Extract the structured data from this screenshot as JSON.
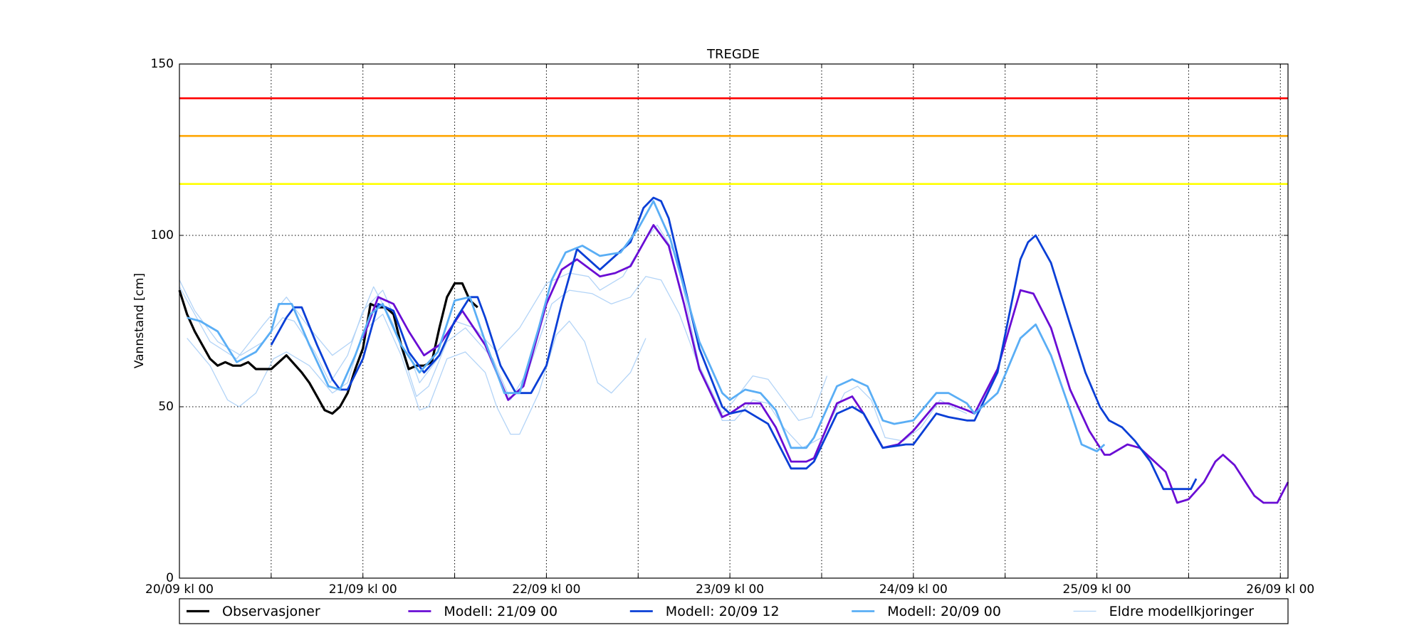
{
  "chart_data": {
    "type": "line",
    "title": "TREGDE",
    "y_label": "Vannstand [cm]",
    "xlim": [
      0,
      145
    ],
    "ylim": [
      0,
      150
    ],
    "xticks": [
      {
        "value": 0,
        "label": "20/09 kl 00"
      },
      {
        "value": 24,
        "label": "21/09 kl 00"
      },
      {
        "value": 48,
        "label": "22/09 kl 00"
      },
      {
        "value": 72,
        "label": "23/09 kl 00"
      },
      {
        "value": 96,
        "label": "24/09 kl 00"
      },
      {
        "value": 120,
        "label": "25/09 kl 00"
      },
      {
        "value": 144,
        "label": "26/09 kl 00"
      }
    ],
    "xminorticks": [
      12,
      36,
      60,
      84,
      108,
      132
    ],
    "yticks": [
      0,
      50,
      100,
      150
    ],
    "grid": true,
    "hlines": [
      {
        "value": 140,
        "color": "#ff0000"
      },
      {
        "value": 129,
        "color": "#ffa500"
      },
      {
        "value": 115,
        "color": "#ffff00"
      }
    ],
    "series": [
      {
        "name": "Observasjoner",
        "color": "#000000",
        "width": 3.2,
        "x": [
          0,
          1,
          2,
          4,
          5,
          6,
          7,
          8,
          9,
          10,
          12,
          14,
          16,
          17,
          18,
          19,
          20,
          21,
          22,
          23,
          24,
          25,
          26,
          27,
          28,
          29,
          30,
          31,
          32,
          33,
          34,
          35,
          36,
          37,
          38,
          39
        ],
        "values": [
          84,
          77,
          72,
          64,
          62,
          63,
          62,
          62,
          63,
          61,
          61,
          65,
          60,
          57,
          53,
          49,
          48,
          50,
          54,
          61,
          67,
          80,
          79,
          79,
          77,
          68,
          61,
          62,
          62,
          63,
          73,
          82,
          86,
          86,
          81,
          79
        ]
      },
      {
        "name": "Modell: 21/09 00",
        "color": "#6a0dd4",
        "width": 2.8,
        "x": [
          24,
          26,
          28,
          30,
          32,
          34,
          37,
          40,
          43,
          45,
          48,
          50,
          52,
          55,
          57,
          59,
          62,
          64,
          66,
          68,
          71,
          72,
          74,
          76,
          78,
          80,
          82,
          83,
          86,
          88,
          89.5,
          92,
          94,
          96,
          99,
          100.6,
          103,
          104,
          107,
          110,
          111.7,
          114,
          116.5,
          119,
          121,
          121.7,
          124,
          125.6,
          129,
          130.5,
          132,
          134,
          135.5,
          136.5,
          138,
          140.6,
          141.8,
          143.6,
          145
        ],
        "values": [
          70,
          82,
          80,
          72,
          65,
          68,
          78,
          68,
          52,
          56,
          80,
          90,
          93,
          88,
          89,
          91,
          103,
          97,
          80,
          61,
          47,
          48,
          51,
          51,
          44,
          34,
          34,
          35,
          51,
          53,
          48,
          38,
          39,
          43,
          51,
          51,
          49,
          48,
          61,
          84,
          83,
          73,
          55,
          43,
          36,
          36,
          39,
          38,
          31,
          22,
          23,
          28,
          34,
          36,
          33,
          24,
          22,
          22,
          28
        ]
      },
      {
        "name": "Modell: 20/09 12",
        "color": "#0a3fd6",
        "width": 2.8,
        "x": [
          12,
          14,
          15,
          16,
          18,
          20,
          21,
          22,
          24,
          26,
          28,
          30,
          32,
          34,
          36,
          38,
          39,
          40,
          42,
          44,
          46,
          48,
          50,
          52,
          55,
          59,
          60.7,
          62,
          63,
          64,
          68,
          71,
          72,
          74,
          77,
          80,
          82,
          83,
          86,
          88,
          89.5,
          92,
          95,
          96,
          99,
          100.6,
          103,
          104,
          107,
          110,
          111,
          112,
          114,
          116.5,
          118.5,
          120.4,
          121.6,
          123.3,
          125,
          127,
          128.7,
          130.5,
          132.3,
          133
        ],
        "values": [
          68,
          76,
          79,
          79,
          68,
          58,
          55,
          55,
          64,
          80,
          78,
          66,
          60,
          65,
          75,
          82,
          82,
          76,
          62,
          54,
          54,
          62,
          80,
          96,
          90,
          98,
          108,
          111,
          110,
          105,
          67,
          50,
          48,
          49,
          45,
          32,
          32,
          34,
          48,
          50,
          48,
          38,
          39,
          39,
          48,
          47,
          46,
          46,
          60,
          93,
          98,
          100,
          92,
          74,
          60,
          50,
          46,
          44,
          40,
          34,
          26,
          26,
          26,
          29
        ]
      },
      {
        "name": "Modell: 20/09 00",
        "color": "#5aaef5",
        "width": 2.8,
        "x": [
          1,
          2.7,
          5,
          7.5,
          10,
          12,
          13,
          14.7,
          17,
          19.5,
          21,
          23,
          25,
          26.6,
          29,
          31.4,
          33.8,
          36,
          38,
          40,
          42.5,
          44.5,
          47,
          48.7,
          50.5,
          52.7,
          55,
          57.7,
          60,
          62,
          64.2,
          68,
          71,
          72,
          74,
          76,
          78,
          80,
          82,
          83,
          86,
          88,
          90,
          92,
          93.5,
          96,
          99,
          100.6,
          103,
          104,
          107,
          110,
          112,
          114,
          116.5,
          118,
          120,
          121
        ],
        "values": [
          76,
          75,
          72,
          63,
          66,
          72,
          80,
          80,
          68,
          56,
          55,
          65,
          77,
          80,
          68,
          60,
          66,
          81,
          82,
          69,
          54,
          54,
          73,
          87,
          95,
          97,
          94,
          95,
          102,
          110,
          99,
          69,
          54,
          52,
          55,
          54,
          49,
          38,
          38,
          41,
          56,
          58,
          56,
          46,
          45,
          46,
          54,
          54,
          51,
          48,
          54,
          70,
          74,
          65,
          49,
          39,
          37,
          39
        ]
      },
      {
        "name": "Eldre modellkjoringer",
        "color": "#b3d4f7",
        "width": 1.3,
        "runs": [
          {
            "x": [
              1,
              4,
              6.3,
              7.8,
              10,
              12.3,
              14,
              17,
              20,
              22,
              24,
              26.6,
              29,
              31.4,
              32.6,
              35,
              37.4,
              40,
              41.5,
              43.3,
              44.5,
              47,
              49.3,
              51,
              53,
              54.7,
              56.5,
              59,
              61
            ],
            "values": [
              70,
              62,
              52,
              50,
              54,
              64,
              66,
              62,
              54,
              57,
              72,
              77,
              65,
              49,
              50,
              64,
              66,
              60,
              50,
              42,
              42,
              54,
              71,
              75,
              69,
              57,
              54,
              60,
              70
            ]
          },
          {
            "x": [
              0,
              2,
              5,
              8,
              11,
              13.5,
              15,
              17.7,
              19.7,
              22,
              24,
              26.6,
              29,
              31.4,
              33.8,
              36,
              38.6,
              41.5,
              44.5,
              48,
              51,
              53.5,
              55,
              58,
              61,
              62.5,
              65,
              68,
              71,
              72.6,
              75,
              77,
              79,
              81,
              82.7,
              84.7
            ],
            "values": [
              87,
              78,
              69,
              65,
              69,
              76,
              75,
              66,
              57,
              65,
              78,
              84,
              72,
              57,
              64,
              75,
              73,
              66,
              73,
              86,
              89,
              88,
              84,
              88,
              99,
              103,
              94,
              62,
              48,
              52,
              59,
              58,
              52,
              46,
              47,
              59
            ]
          },
          {
            "x": [
              0,
              4,
              7.5,
              11,
              14,
              17,
              20,
              22.5,
              25.4,
              28,
              31,
              32.6,
              35,
              37.4,
              41,
              43.3,
              45.7,
              48.7,
              51,
              54,
              56.5,
              59,
              61,
              63,
              65.4,
              68.4,
              71,
              72.6,
              75,
              77,
              79,
              81.5,
              84,
              87,
              88.7,
              90.5,
              92.3,
              94.7,
              97,
              99.5,
              101,
              103
            ],
            "values": [
              85,
              69,
              64,
              74,
              82,
              73,
              65,
              69,
              85,
              74,
              53,
              56,
              69,
              73,
              64,
              52,
              61,
              80,
              84,
              83,
              80,
              82,
              88,
              87,
              77,
              59,
              46,
              46,
              52,
              51,
              44,
              38,
              41,
              54,
              56,
              52,
              41,
              40,
              44,
              52,
              50,
              48
            ]
          }
        ]
      }
    ]
  }
}
